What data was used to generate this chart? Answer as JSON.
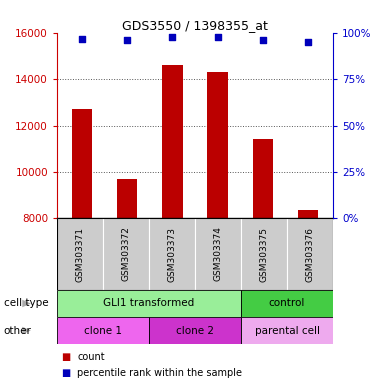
{
  "title": "GDS3550 / 1398355_at",
  "samples": [
    "GSM303371",
    "GSM303372",
    "GSM303373",
    "GSM303374",
    "GSM303375",
    "GSM303376"
  ],
  "counts": [
    12700,
    9700,
    14600,
    14300,
    11400,
    8350
  ],
  "percentile_ranks": [
    97,
    96,
    98,
    98,
    96,
    95
  ],
  "ylim_left": [
    8000,
    16000
  ],
  "ylim_right": [
    0,
    100
  ],
  "yticks_left": [
    8000,
    10000,
    12000,
    14000,
    16000
  ],
  "yticks_right": [
    0,
    25,
    50,
    75,
    100
  ],
  "bar_color": "#bb0000",
  "dot_color": "#0000bb",
  "bar_width": 0.45,
  "cell_type_groups": [
    {
      "text": "GLI1 transformed",
      "cols": [
        0,
        1,
        2,
        3
      ],
      "color": "#99ee99"
    },
    {
      "text": "control",
      "cols": [
        4,
        5
      ],
      "color": "#44cc44"
    }
  ],
  "other_groups": [
    {
      "text": "clone 1",
      "cols": [
        0,
        1
      ],
      "color": "#ee66ee"
    },
    {
      "text": "clone 2",
      "cols": [
        2,
        3
      ],
      "color": "#cc33cc"
    },
    {
      "text": "parental cell",
      "cols": [
        4,
        5
      ],
      "color": "#eeaaee"
    }
  ],
  "label_row1_text": "cell type",
  "label_row2_text": "other",
  "legend_count_text": "count",
  "legend_pct_text": "percentile rank within the sample",
  "left_axis_color": "#cc0000",
  "right_axis_color": "#0000cc",
  "sample_bg_color": "#cccccc",
  "grid_color": "#555555"
}
